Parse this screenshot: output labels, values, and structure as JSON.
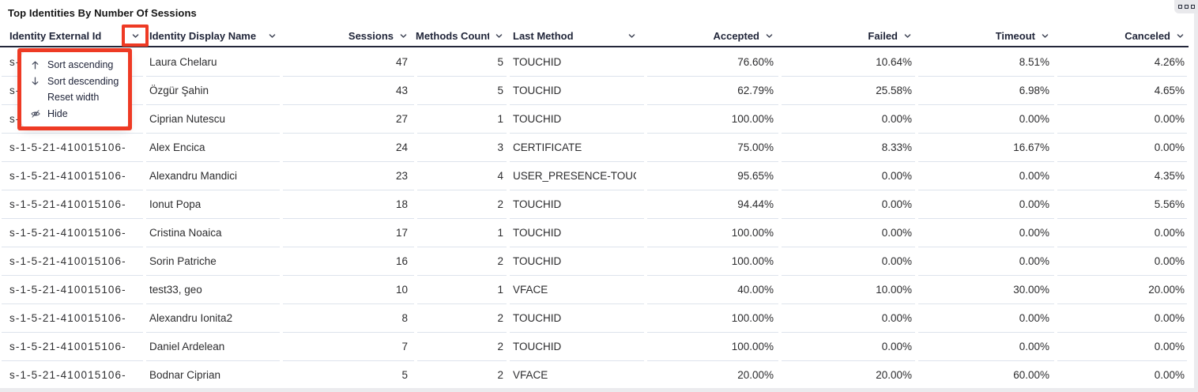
{
  "panel": {
    "title": "Top Identities By Number Of Sessions",
    "options_icon": "three-squares"
  },
  "context_menu": {
    "open_on_column": "identity_external_id",
    "items": [
      {
        "icon": "arrow-up-icon",
        "label": "Sort ascending"
      },
      {
        "icon": "arrow-down-icon",
        "label": "Sort descending"
      },
      {
        "icon": null,
        "label": "Reset width"
      },
      {
        "icon": "eye-off-icon",
        "label": "Hide"
      }
    ]
  },
  "annotations": {
    "color": "#ee3a24",
    "boxes": [
      "header-chevron-identity-external-id",
      "column-context-menu"
    ]
  },
  "table": {
    "columns": [
      {
        "id": "identity_external_id",
        "label": "Identity External Id",
        "align": "left",
        "sortable": true
      },
      {
        "id": "identity_display_name",
        "label": "Identity Display Name",
        "align": "left",
        "sortable": true
      },
      {
        "id": "sessions",
        "label": "Sessions",
        "align": "right",
        "sortable": true
      },
      {
        "id": "methods_count",
        "label": "Methods Count",
        "align": "right",
        "sortable": true
      },
      {
        "id": "last_method",
        "label": "Last Method",
        "align": "left",
        "sortable": true
      },
      {
        "id": "accepted",
        "label": "Accepted",
        "align": "right",
        "sortable": true
      },
      {
        "id": "failed",
        "label": "Failed",
        "align": "right",
        "sortable": true
      },
      {
        "id": "timeout",
        "label": "Timeout",
        "align": "right",
        "sortable": true
      },
      {
        "id": "canceled",
        "label": "Canceled",
        "align": "right",
        "sortable": true
      }
    ],
    "rows": [
      [
        "s-1-5-21-410015106-",
        "Laura Chelaru",
        "47",
        "5",
        "TOUCHID",
        "76.60%",
        "10.64%",
        "8.51%",
        "4.26%"
      ],
      [
        "s-1-5-21-410015106-",
        "Özgür Şahin",
        "43",
        "5",
        "TOUCHID",
        "62.79%",
        "25.58%",
        "6.98%",
        "4.65%"
      ],
      [
        "s-1-5-21-410015106-",
        "Ciprian Nutescu",
        "27",
        "1",
        "TOUCHID",
        "100.00%",
        "0.00%",
        "0.00%",
        "0.00%"
      ],
      [
        "s-1-5-21-410015106-",
        "Alex Encica",
        "24",
        "3",
        "CERTIFICATE",
        "75.00%",
        "8.33%",
        "16.67%",
        "0.00%"
      ],
      [
        "s-1-5-21-410015106-",
        "Alexandru Mandici",
        "23",
        "4",
        "USER_PRESENCE-TOUC",
        "95.65%",
        "0.00%",
        "0.00%",
        "4.35%"
      ],
      [
        "s-1-5-21-410015106-",
        "Ionut Popa",
        "18",
        "2",
        "TOUCHID",
        "94.44%",
        "0.00%",
        "0.00%",
        "5.56%"
      ],
      [
        "s-1-5-21-410015106-",
        "Cristina Noaica",
        "17",
        "1",
        "TOUCHID",
        "100.00%",
        "0.00%",
        "0.00%",
        "0.00%"
      ],
      [
        "s-1-5-21-410015106-",
        "Sorin Patriche",
        "16",
        "2",
        "TOUCHID",
        "100.00%",
        "0.00%",
        "0.00%",
        "0.00%"
      ],
      [
        "s-1-5-21-410015106-",
        "test33, geo",
        "10",
        "1",
        "VFACE",
        "40.00%",
        "10.00%",
        "30.00%",
        "20.00%"
      ],
      [
        "s-1-5-21-410015106-",
        "Alexandru Ionita2",
        "8",
        "2",
        "TOUCHID",
        "100.00%",
        "0.00%",
        "0.00%",
        "0.00%"
      ],
      [
        "s-1-5-21-410015106-",
        "Daniel Ardelean",
        "7",
        "2",
        "TOUCHID",
        "100.00%",
        "0.00%",
        "0.00%",
        "0.00%"
      ],
      [
        "s-1-5-21-410015106-",
        "Bodnar Ciprian",
        "5",
        "2",
        "VFACE",
        "20.00%",
        "20.00%",
        "60.00%",
        "0.00%"
      ]
    ]
  },
  "colors": {
    "annotation_red": "#ee3a24",
    "header_text": "#1f2438",
    "row_text": "#2c2c2e",
    "divider": "#dde3ec",
    "header_border": "#23273a",
    "gutter": "#ebebee",
    "background": "#ffffff"
  }
}
